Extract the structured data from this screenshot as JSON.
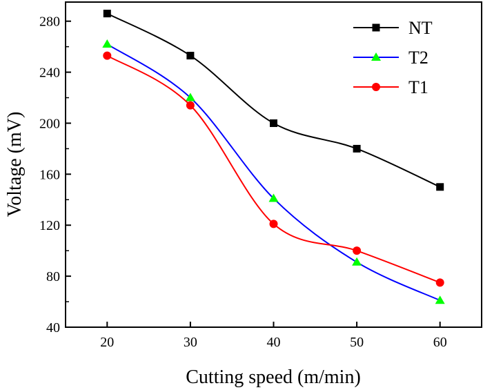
{
  "chart_data": {
    "type": "line",
    "title": "",
    "xlabel": "Cutting speed (m/min)",
    "ylabel": "Voltage (mV)",
    "x": [
      20,
      30,
      40,
      50,
      60
    ],
    "xlim": [
      15,
      65
    ],
    "ylim": [
      40,
      295
    ],
    "xticks": [
      20,
      30,
      40,
      50,
      60
    ],
    "yticks": [
      40,
      80,
      120,
      160,
      200,
      240,
      280
    ],
    "grid": false,
    "legend_position": "top-right",
    "series": [
      {
        "name": "NT",
        "values": [
          286,
          253,
          200,
          180,
          150
        ],
        "color": "#000000",
        "marker": "square"
      },
      {
        "name": "T2",
        "values": [
          262,
          220,
          141,
          91,
          61
        ],
        "color": "#0000ff",
        "marker": "triangle",
        "marker_color": "#00ff00"
      },
      {
        "name": "T1",
        "values": [
          253,
          214,
          121,
          100,
          75
        ],
        "color": "#ff0000",
        "marker": "circle"
      }
    ]
  }
}
